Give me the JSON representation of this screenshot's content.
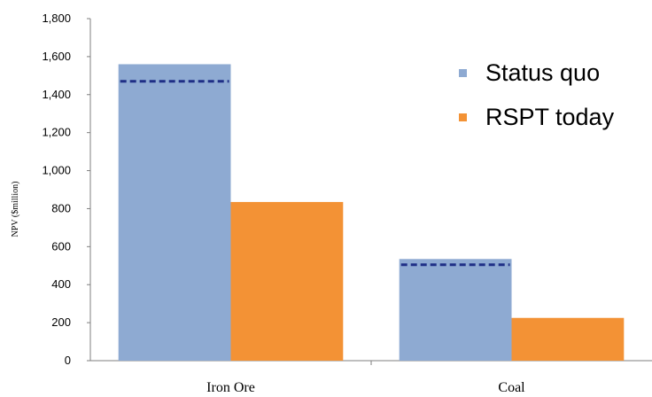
{
  "chart_data": {
    "type": "bar",
    "categories": [
      "Iron Ore",
      "Coal"
    ],
    "series": [
      {
        "name": "Status quo",
        "values": [
          1560,
          535
        ],
        "color": "#8eaad2"
      },
      {
        "name": "RSPT today",
        "values": [
          835,
          225
        ],
        "color": "#f39235"
      }
    ],
    "reference_lines": [
      {
        "category": "Iron Ore",
        "value": 1470,
        "style": "dashed",
        "color": "#1f2f86"
      },
      {
        "category": "Coal",
        "value": 505,
        "style": "dashed",
        "color": "#1f2f86"
      }
    ],
    "ylabel": "NPV ($million)",
    "ylim": [
      0,
      1800
    ],
    "yticks": [
      "0",
      "200",
      "400",
      "600",
      "800",
      "1,000",
      "1,200",
      "1,400",
      "1,600",
      "1,800"
    ],
    "grid": false,
    "legend_position": "top-right"
  }
}
